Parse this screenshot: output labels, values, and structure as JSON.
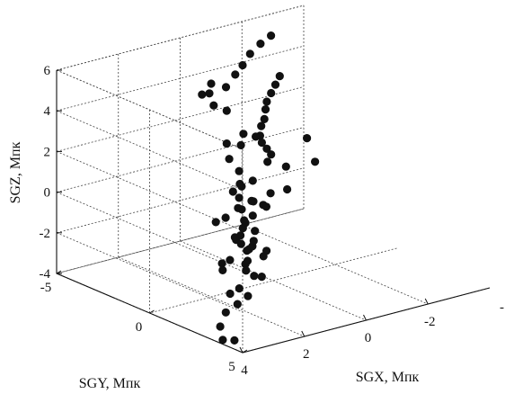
{
  "chart_data": {
    "type": "scatter",
    "title": "",
    "xlabel": "SGX, Мпк",
    "ylabel": "SGY, Мпк",
    "zlabel": "SGZ, Мпк",
    "xlim": [
      -4,
      4
    ],
    "ylim": [
      -5,
      5
    ],
    "zlim": [
      -4,
      6
    ],
    "x_ticks": [
      -2,
      0,
      2,
      4
    ],
    "x_tick_labels": [
      "-2",
      "0",
      "2",
      "4"
    ],
    "y_ticks": [
      -5,
      0,
      5
    ],
    "y_tick_labels": [
      "-5",
      "0",
      "5"
    ],
    "z_ticks": [
      -4,
      -2,
      0,
      2,
      4,
      6
    ],
    "z_tick_labels": [
      "-4",
      "-2",
      "0",
      "2",
      "4",
      "6"
    ],
    "x_edge_label": "-",
    "grid": true,
    "marker": "filled-circle",
    "marker_color": "#111111",
    "points": [
      {
        "x": -2.4,
        "y": -4.1,
        "z": 5.5
      },
      {
        "x": -2.0,
        "y": -4.0,
        "z": 5.3
      },
      {
        "x": -1.6,
        "y": -3.9,
        "z": 5.0
      },
      {
        "x": -1.3,
        "y": -3.8,
        "z": 4.6
      },
      {
        "x": -1.0,
        "y": -3.7,
        "z": 4.3
      },
      {
        "x": -0.7,
        "y": -3.7,
        "z": 3.8
      },
      {
        "x": -2.2,
        "y": -3.3,
        "z": 3.9
      },
      {
        "x": -2.0,
        "y": -3.2,
        "z": 3.6
      },
      {
        "x": -1.8,
        "y": -3.1,
        "z": 3.3
      },
      {
        "x": -1.6,
        "y": -3.0,
        "z": 3.0
      },
      {
        "x": -1.5,
        "y": -2.9,
        "z": 2.7
      },
      {
        "x": -1.4,
        "y": -2.8,
        "z": 2.3
      },
      {
        "x": -1.3,
        "y": -2.8,
        "z": 2.0
      },
      {
        "x": -1.2,
        "y": -2.7,
        "z": 1.6
      },
      {
        "x": -1.2,
        "y": -2.6,
        "z": 1.3
      },
      {
        "x": -1.3,
        "y": -2.5,
        "z": 1.0
      },
      {
        "x": -1.5,
        "y": -2.6,
        "z": 0.6
      },
      {
        "x": -2.6,
        "y": -2.5,
        "z": 1.0
      },
      {
        "x": -2.8,
        "y": -2.4,
        "z": -0.2
      },
      {
        "x": -1.8,
        "y": -2.3,
        "z": 0.0
      },
      {
        "x": -1.9,
        "y": -2.4,
        "z": -1.2
      },
      {
        "x": -1.0,
        "y": -1.8,
        "z": -0.8
      },
      {
        "x": -0.4,
        "y": -1.2,
        "z": -0.9
      },
      {
        "x": 0.2,
        "y": -3.0,
        "z": 4.6
      },
      {
        "x": 0.5,
        "y": -2.6,
        "z": 4.4
      },
      {
        "x": 0.8,
        "y": -2.5,
        "z": 4.5
      },
      {
        "x": 0.6,
        "y": -2.2,
        "z": 4.0
      },
      {
        "x": 0.3,
        "y": -2.0,
        "z": 3.7
      },
      {
        "x": 0.0,
        "y": -1.6,
        "z": 2.6
      },
      {
        "x": 0.2,
        "y": -1.4,
        "z": 2.2
      },
      {
        "x": 0.6,
        "y": -1.5,
        "z": 2.4
      },
      {
        "x": 0.7,
        "y": -1.2,
        "z": 1.8
      },
      {
        "x": 0.5,
        "y": -1.0,
        "z": 1.2
      },
      {
        "x": 0.3,
        "y": -0.6,
        "z": 0.8
      },
      {
        "x": 0.6,
        "y": -0.7,
        "z": 0.6
      },
      {
        "x": 0.8,
        "y": -0.5,
        "z": 0.2
      },
      {
        "x": 0.4,
        "y": -0.4,
        "z": -0.1
      },
      {
        "x": 0.1,
        "y": -0.2,
        "z": -0.4
      },
      {
        "x": 0.6,
        "y": -0.1,
        "z": -0.6
      },
      {
        "x": 0.9,
        "y": 0.0,
        "z": -0.8
      },
      {
        "x": 1.0,
        "y": 0.1,
        "z": -0.6
      },
      {
        "x": 1.1,
        "y": 0.2,
        "z": -0.9
      },
      {
        "x": 1.3,
        "y": 0.4,
        "z": -1.1
      },
      {
        "x": 1.5,
        "y": 0.5,
        "z": -1.2
      },
      {
        "x": 1.6,
        "y": 0.6,
        "z": -1.0
      },
      {
        "x": 1.4,
        "y": 0.6,
        "z": -1.4
      },
      {
        "x": 1.2,
        "y": 0.7,
        "z": -1.7
      },
      {
        "x": 1.5,
        "y": 1.0,
        "z": -2.2
      },
      {
        "x": 1.6,
        "y": 1.2,
        "z": -2.4
      },
      {
        "x": 1.4,
        "y": 1.3,
        "z": -2.7
      },
      {
        "x": 1.9,
        "y": 1.8,
        "z": -3.3
      },
      {
        "x": 2.0,
        "y": 1.5,
        "z": -3.0
      },
      {
        "x": 2.3,
        "y": 1.9,
        "z": -3.5
      },
      {
        "x": 1.2,
        "y": 0.3,
        "z": 0.1
      },
      {
        "x": 0.7,
        "y": 0.0,
        "z": 0.2
      },
      {
        "x": 1.5,
        "y": 0.6,
        "z": 0.4
      },
      {
        "x": 0.9,
        "y": -0.3,
        "z": 1.0
      },
      {
        "x": 1.3,
        "y": 0.0,
        "z": 0.9
      },
      {
        "x": 2.2,
        "y": 1.1,
        "z": 0.4
      },
      {
        "x": 2.7,
        "y": 1.4,
        "z": 0.5
      },
      {
        "x": 2.8,
        "y": 1.9,
        "z": -1.3
      },
      {
        "x": 2.0,
        "y": 1.0,
        "z": -1.8
      },
      {
        "x": 3.2,
        "y": 2.6,
        "z": -1.2
      },
      {
        "x": 3.4,
        "y": 3.1,
        "z": -3.0
      },
      {
        "x": 3.7,
        "y": 3.3,
        "z": -3.5
      },
      {
        "x": 3.2,
        "y": 3.0,
        "z": -2.2
      },
      {
        "x": 3.8,
        "y": 3.6,
        "z": -4.0
      },
      {
        "x": 3.3,
        "y": 3.4,
        "z": -4.3
      },
      {
        "x": -0.4,
        "y": -1.6,
        "z": 2.3
      },
      {
        "x": -0.6,
        "y": -1.3,
        "z": 1.1
      },
      {
        "x": 1.6,
        "y": 2.3,
        "z": -1.0
      },
      {
        "x": 2.3,
        "y": 3.3,
        "z": -0.6
      },
      {
        "x": 3.2,
        "y": 4.7,
        "z": -0.7
      },
      {
        "x": 3.2,
        "y": 4.2,
        "z": 0.6
      },
      {
        "x": 3.4,
        "y": 4.6,
        "z": 1.1
      },
      {
        "x": 3.0,
        "y": 4.0,
        "z": 1.2
      },
      {
        "x": 3.8,
        "y": 4.9,
        "z": 0.9
      },
      {
        "x": 3.6,
        "y": 4.6,
        "z": 0.2
      }
    ]
  }
}
